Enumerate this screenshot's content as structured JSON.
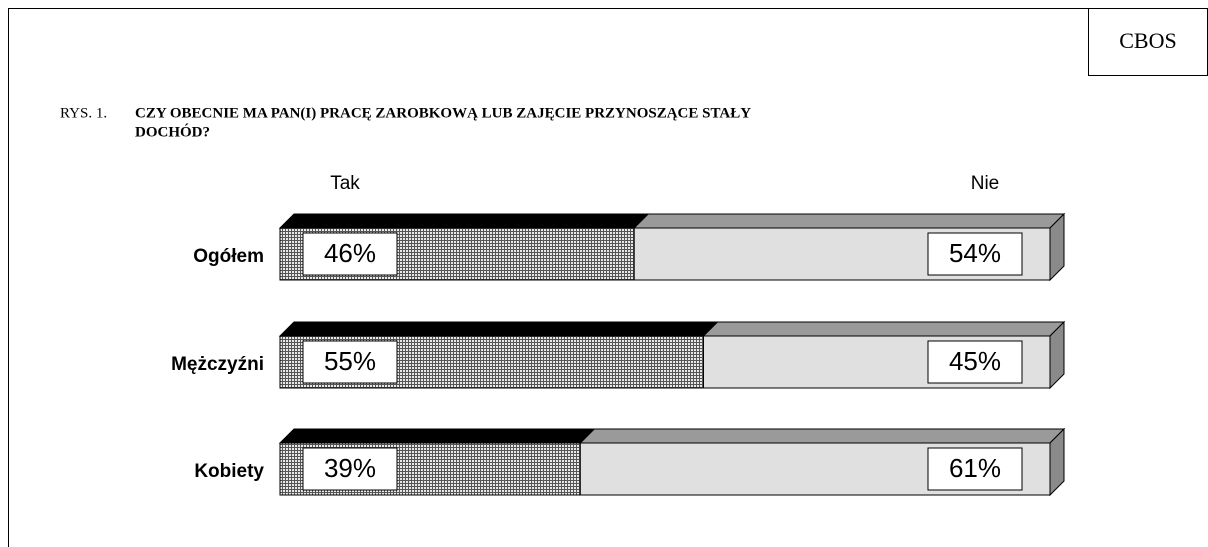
{
  "header": {
    "source": "CBOS",
    "figure_number": "RYS. 1."
  },
  "chart_data": {
    "type": "stacked-bar-horizontal",
    "title_lines": [
      "CZY OBECNIE MA PAN(I) PRACĘ ZAROBKOWĄ LUB ZAJĘCIE PRZYNOSZĄCE STAŁY",
      "DOCHÓD?"
    ],
    "categories": [
      "Ogółem",
      "Mężczyźni",
      "Kobiety"
    ],
    "series": [
      {
        "name": "Tak",
        "color": "#9a9a9a",
        "top_color": "#000000",
        "pattern": "grid",
        "values": [
          46,
          55,
          39
        ],
        "value_labels": [
          "46%",
          "55%",
          "39%"
        ]
      },
      {
        "name": "Nie",
        "color": "#e0e0e0",
        "top_color": "#9a9a9a",
        "values": [
          54,
          45,
          61
        ],
        "value_labels": [
          "54%",
          "45%",
          "61%"
        ]
      }
    ],
    "xlim": [
      0,
      100
    ]
  }
}
